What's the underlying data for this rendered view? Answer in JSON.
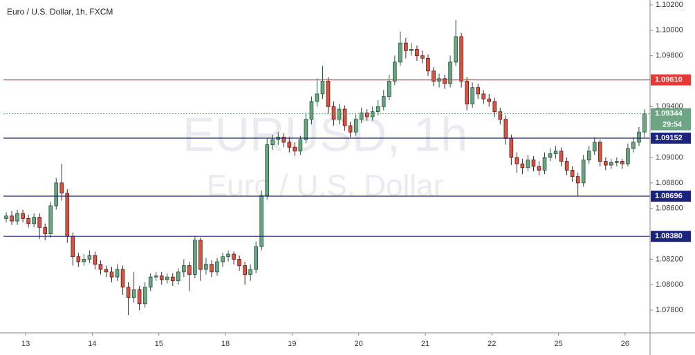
{
  "chart_data": {
    "type": "candlestick",
    "title": "Euro / U.S. Dollar, 1h, FXCM",
    "watermark": "EURUSD, 1h",
    "watermark_subtitle": "Euro / U.S. Dollar",
    "up_color": "#6ba583",
    "down_color": "#d75442",
    "candles": [
      [
        1.0852,
        1.0857,
        1.0849,
        1.0854
      ],
      [
        1.0854,
        1.0858,
        1.0847,
        1.085
      ],
      [
        1.085,
        1.0859,
        1.0847,
        1.0856
      ],
      [
        1.0856,
        1.0859,
        1.0849,
        1.0852
      ],
      [
        1.0852,
        1.0855,
        1.0845,
        1.0848
      ],
      [
        1.0848,
        1.0856,
        1.0845,
        1.0853
      ],
      [
        1.0853,
        1.0856,
        1.0836,
        1.0845
      ],
      [
        1.0845,
        1.0848,
        1.0835,
        1.084
      ],
      [
        1.084,
        1.0865,
        1.0837,
        1.0862
      ],
      [
        1.0862,
        1.0884,
        1.0859,
        1.088
      ],
      [
        1.088,
        1.0895,
        1.0866,
        1.0872
      ],
      [
        1.0872,
        1.0875,
        1.0833,
        1.0838
      ],
      [
        1.0838,
        1.0841,
        1.0815,
        1.0822
      ],
      [
        1.0822,
        1.0825,
        1.0814,
        1.0818
      ],
      [
        1.0818,
        1.0824,
        1.0815,
        1.082
      ],
      [
        1.082,
        1.0827,
        1.0817,
        1.0823
      ],
      [
        1.0823,
        1.0826,
        1.0812,
        1.0816
      ],
      [
        1.0816,
        1.0819,
        1.0808,
        1.0812
      ],
      [
        1.0812,
        1.0815,
        1.0806,
        1.081
      ],
      [
        1.081,
        1.0814,
        1.0802,
        1.0806
      ],
      [
        1.0806,
        1.0816,
        1.0803,
        1.0812
      ],
      [
        1.0812,
        1.0815,
        1.0792,
        1.0798
      ],
      [
        1.0798,
        1.0802,
        1.0776,
        1.079
      ],
      [
        1.079,
        1.081,
        1.0786,
        1.0796
      ],
      [
        1.0796,
        1.0799,
        1.078,
        1.0785
      ],
      [
        1.0785,
        1.0802,
        1.0782,
        1.0798
      ],
      [
        1.0798,
        1.0809,
        1.0795,
        1.0806
      ],
      [
        1.0806,
        1.081,
        1.0803,
        1.0807
      ],
      [
        1.0807,
        1.081,
        1.08,
        1.0804
      ],
      [
        1.0804,
        1.0809,
        1.0801,
        1.0806
      ],
      [
        1.0806,
        1.0809,
        1.0799,
        1.0803
      ],
      [
        1.0803,
        1.0813,
        1.08,
        1.081
      ],
      [
        1.081,
        1.082,
        1.0806,
        1.0815
      ],
      [
        1.0815,
        1.0818,
        1.0795,
        1.0808
      ],
      [
        1.0808,
        1.0838,
        1.0805,
        1.0835
      ],
      [
        1.0835,
        1.0837,
        1.0803,
        1.0812
      ],
      [
        1.0812,
        1.0821,
        1.0808,
        1.0816
      ],
      [
        1.0816,
        1.0819,
        1.0806,
        1.081
      ],
      [
        1.081,
        1.0821,
        1.0807,
        1.0818
      ],
      [
        1.0818,
        1.0825,
        1.0814,
        1.0822
      ],
      [
        1.0822,
        1.0827,
        1.0818,
        1.0824
      ],
      [
        1.0824,
        1.0826,
        1.0816,
        1.082
      ],
      [
        1.082,
        1.0823,
        1.0811,
        1.0815
      ],
      [
        1.0815,
        1.0818,
        1.08,
        1.0808
      ],
      [
        1.0808,
        1.0816,
        1.0803,
        1.0812
      ],
      [
        1.0812,
        1.0834,
        1.0809,
        1.083
      ],
      [
        1.083,
        1.0874,
        1.0827,
        1.087
      ],
      [
        1.087,
        1.0915,
        1.0867,
        1.091
      ],
      [
        1.091,
        1.0918,
        1.0906,
        1.0914
      ],
      [
        1.0914,
        1.092,
        1.091,
        1.0916
      ],
      [
        1.0916,
        1.0919,
        1.0908,
        1.0912
      ],
      [
        1.0912,
        1.0916,
        1.0904,
        1.0908
      ],
      [
        1.0908,
        1.0912,
        1.0901,
        1.0905
      ],
      [
        1.0905,
        1.0917,
        1.0902,
        1.0914
      ],
      [
        1.0914,
        1.0935,
        1.0911,
        1.093
      ],
      [
        1.093,
        1.0948,
        1.0926,
        1.0944
      ],
      [
        1.0944,
        1.0962,
        1.094,
        1.095
      ],
      [
        1.095,
        1.0972,
        1.0946,
        1.096
      ],
      [
        1.096,
        1.0963,
        1.0934,
        1.094
      ],
      [
        1.094,
        1.0944,
        1.0925,
        1.093
      ],
      [
        1.093,
        1.0942,
        1.0926,
        1.0938
      ],
      [
        1.0938,
        1.0941,
        1.0921,
        1.0925
      ],
      [
        1.0925,
        1.0928,
        1.0916,
        1.092
      ],
      [
        1.092,
        1.0934,
        1.0917,
        1.093
      ],
      [
        1.093,
        1.0939,
        1.0927,
        1.0935
      ],
      [
        1.0935,
        1.0938,
        1.0929,
        1.0932
      ],
      [
        1.0932,
        1.094,
        1.0929,
        1.0936
      ],
      [
        1.0936,
        1.0945,
        1.0933,
        1.094
      ],
      [
        1.094,
        1.0953,
        1.0937,
        1.0948
      ],
      [
        1.0948,
        1.0965,
        1.0945,
        1.096
      ],
      [
        1.096,
        1.098,
        1.0957,
        1.0975
      ],
      [
        1.0975,
        1.0999,
        1.0972,
        1.099
      ],
      [
        1.099,
        1.0994,
        1.0978,
        1.0984
      ],
      [
        1.0984,
        1.099,
        1.098,
        1.0985
      ],
      [
        1.0985,
        1.0988,
        1.0976,
        1.098
      ],
      [
        1.098,
        1.0984,
        1.0974,
        1.0978
      ],
      [
        1.0978,
        1.0981,
        1.0964,
        1.0968
      ],
      [
        1.0968,
        1.0971,
        1.0956,
        1.096
      ],
      [
        1.096,
        1.0966,
        1.0955,
        1.0962
      ],
      [
        1.0962,
        1.0965,
        1.0954,
        1.0958
      ],
      [
        1.0958,
        1.098,
        1.0955,
        1.0975
      ],
      [
        1.0975,
        1.1008,
        1.0972,
        1.0995
      ],
      [
        1.0995,
        1.0998,
        1.0955,
        1.096
      ],
      [
        1.096,
        1.0963,
        1.0937,
        1.0942
      ],
      [
        1.0942,
        1.0959,
        1.0939,
        1.0955
      ],
      [
        1.0955,
        1.0958,
        1.0946,
        1.095
      ],
      [
        1.095,
        1.0953,
        1.0942,
        1.0946
      ],
      [
        1.0946,
        1.095,
        1.094,
        1.0944
      ],
      [
        1.0944,
        1.0947,
        1.0932,
        1.0936
      ],
      [
        1.0936,
        1.0939,
        1.0926,
        1.093
      ],
      [
        1.093,
        1.0933,
        1.091,
        1.0915
      ],
      [
        1.0915,
        1.0918,
        1.0894,
        1.09
      ],
      [
        1.09,
        1.0904,
        1.0888,
        1.0895
      ],
      [
        1.0895,
        1.0899,
        1.0887,
        1.0892
      ],
      [
        1.0892,
        1.0902,
        1.0889,
        1.0898
      ],
      [
        1.0898,
        1.0901,
        1.0889,
        1.0893
      ],
      [
        1.0893,
        1.0897,
        1.0886,
        1.089
      ],
      [
        1.089,
        1.0904,
        1.0887,
        1.09
      ],
      [
        1.09,
        1.0907,
        1.0897,
        1.0903
      ],
      [
        1.0903,
        1.0909,
        1.0899,
        1.0905
      ],
      [
        1.0905,
        1.0908,
        1.0893,
        1.0897
      ],
      [
        1.0897,
        1.09,
        1.0886,
        1.089
      ],
      [
        1.089,
        1.0893,
        1.0881,
        1.0885
      ],
      [
        1.0885,
        1.0888,
        1.087,
        1.088
      ],
      [
        1.088,
        1.0902,
        1.0877,
        1.0898
      ],
      [
        1.0898,
        1.0909,
        1.0895,
        1.0905
      ],
      [
        1.0905,
        1.0916,
        1.0902,
        1.0912
      ],
      [
        1.0912,
        1.0914,
        1.0893,
        1.0897
      ],
      [
        1.0897,
        1.09,
        1.089,
        1.0894
      ],
      [
        1.0894,
        1.0899,
        1.0891,
        1.0896
      ],
      [
        1.0896,
        1.09,
        1.0893,
        1.0897
      ],
      [
        1.0897,
        1.0899,
        1.0891,
        1.0895
      ],
      [
        1.0895,
        1.0911,
        1.0893,
        1.0907
      ],
      [
        1.0907,
        1.0916,
        1.0904,
        1.0912
      ],
      [
        1.0912,
        1.0924,
        1.0909,
        1.092
      ],
      [
        1.092,
        1.0938,
        1.0916,
        1.09344
      ]
    ],
    "xlim": [
      -0.5,
      116
    ],
    "xticks": [
      {
        "value": 3.5,
        "label": "13"
      },
      {
        "value": 15.5,
        "label": "14"
      },
      {
        "value": 27.5,
        "label": "15"
      },
      {
        "value": 39.5,
        "label": "18"
      },
      {
        "value": 51.5,
        "label": "19"
      },
      {
        "value": 63.5,
        "label": "20"
      },
      {
        "value": 75.5,
        "label": "21"
      },
      {
        "value": 87.5,
        "label": "22"
      },
      {
        "value": 99.5,
        "label": "25"
      },
      {
        "value": 111.5,
        "label": "26"
      }
    ],
    "ylim": [
      1.07621,
      1.10238
    ],
    "yticks": [
      {
        "value": 1.078,
        "label": "1.07800"
      },
      {
        "value": 1.08,
        "label": "1.08000"
      },
      {
        "value": 1.082,
        "label": "1.08200"
      },
      {
        "value": 1.086,
        "label": "1.08600"
      },
      {
        "value": 1.088,
        "label": "1.08800"
      },
      {
        "value": 1.09,
        "label": "1.09000"
      },
      {
        "value": 1.094,
        "label": "1.09400"
      },
      {
        "value": 1.098,
        "label": "1.09800"
      },
      {
        "value": 1.1,
        "label": "1.10000"
      },
      {
        "value": 1.102,
        "label": "1.10200"
      }
    ],
    "levels": [
      {
        "value": 1.0961,
        "label": "1.09610",
        "color": "#e53935"
      },
      {
        "value": 1.09152,
        "label": "1.09152",
        "color": "#1a237e"
      },
      {
        "value": 1.08696,
        "label": "1.08696",
        "color": "#1a237e"
      },
      {
        "value": 1.0838,
        "label": "1.08380",
        "color": "#1a237e"
      }
    ],
    "last_price": {
      "value": 1.09344,
      "label": "1.09344",
      "countdown": "29:54",
      "color": "#6ba583"
    }
  }
}
